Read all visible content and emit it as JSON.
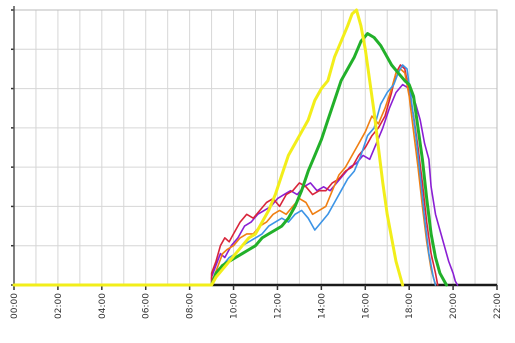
{
  "chart_data": {
    "type": "line",
    "title": "",
    "xlabel": "",
    "ylabel": "",
    "x_tick_labels": [
      "00:00",
      "02:00",
      "04:00",
      "06:00",
      "08:00",
      "10:00",
      "12:00",
      "14:00",
      "16:00",
      "18:00",
      "20:00",
      "22:00"
    ],
    "xlim": [
      0,
      22
    ],
    "ylim": [
      0,
      7
    ],
    "grid": true,
    "legend": "none",
    "series": [
      {
        "color": "#8a1fd4",
        "points": [
          [
            0,
            0
          ],
          [
            9.0,
            0
          ],
          [
            9.0,
            0.2
          ],
          [
            9.2,
            0.5
          ],
          [
            9.4,
            0.8
          ],
          [
            9.6,
            0.7
          ],
          [
            9.9,
            1.0
          ],
          [
            10.2,
            1.2
          ],
          [
            10.5,
            1.5
          ],
          [
            10.8,
            1.6
          ],
          [
            11.1,
            1.8
          ],
          [
            11.4,
            1.9
          ],
          [
            11.7,
            2.0
          ],
          [
            12.0,
            2.2
          ],
          [
            12.3,
            2.3
          ],
          [
            12.6,
            2.4
          ],
          [
            12.9,
            2.3
          ],
          [
            13.2,
            2.5
          ],
          [
            13.5,
            2.6
          ],
          [
            13.8,
            2.4
          ],
          [
            14.1,
            2.5
          ],
          [
            14.4,
            2.4
          ],
          [
            14.7,
            2.6
          ],
          [
            15.0,
            2.8
          ],
          [
            15.3,
            3.0
          ],
          [
            15.6,
            3.1
          ],
          [
            15.9,
            3.3
          ],
          [
            16.2,
            3.2
          ],
          [
            16.5,
            3.6
          ],
          [
            16.8,
            4.0
          ],
          [
            17.1,
            4.5
          ],
          [
            17.4,
            4.9
          ],
          [
            17.7,
            5.1
          ],
          [
            18.0,
            5.0
          ],
          [
            18.3,
            4.6
          ],
          [
            18.5,
            4.2
          ],
          [
            18.7,
            3.6
          ],
          [
            18.9,
            3.2
          ],
          [
            19.0,
            2.5
          ],
          [
            19.2,
            1.8
          ],
          [
            19.4,
            1.4
          ],
          [
            19.6,
            1.0
          ],
          [
            19.8,
            0.6
          ],
          [
            20.0,
            0.3
          ],
          [
            20.1,
            0.1
          ],
          [
            20.2,
            0
          ]
        ]
      },
      {
        "color": "#d8253a",
        "points": [
          [
            0,
            0
          ],
          [
            9.0,
            0
          ],
          [
            9.0,
            0.3
          ],
          [
            9.2,
            0.6
          ],
          [
            9.4,
            1.0
          ],
          [
            9.6,
            1.2
          ],
          [
            9.8,
            1.1
          ],
          [
            10.0,
            1.3
          ],
          [
            10.3,
            1.6
          ],
          [
            10.6,
            1.8
          ],
          [
            10.9,
            1.7
          ],
          [
            11.2,
            1.9
          ],
          [
            11.5,
            2.1
          ],
          [
            11.8,
            2.2
          ],
          [
            12.1,
            2.0
          ],
          [
            12.4,
            2.3
          ],
          [
            12.7,
            2.4
          ],
          [
            13.0,
            2.6
          ],
          [
            13.3,
            2.5
          ],
          [
            13.6,
            2.3
          ],
          [
            13.9,
            2.4
          ],
          [
            14.2,
            2.4
          ],
          [
            14.5,
            2.6
          ],
          [
            14.8,
            2.7
          ],
          [
            15.1,
            2.9
          ],
          [
            15.4,
            3.0
          ],
          [
            15.7,
            3.3
          ],
          [
            16.0,
            3.5
          ],
          [
            16.3,
            3.8
          ],
          [
            16.6,
            4.0
          ],
          [
            16.9,
            4.3
          ],
          [
            17.2,
            4.9
          ],
          [
            17.4,
            5.4
          ],
          [
            17.6,
            5.6
          ],
          [
            17.8,
            5.5
          ],
          [
            18.0,
            4.9
          ],
          [
            18.2,
            4.3
          ],
          [
            18.4,
            3.5
          ],
          [
            18.6,
            2.6
          ],
          [
            18.8,
            1.6
          ],
          [
            19.0,
            0.8
          ],
          [
            19.2,
            0.3
          ],
          [
            19.3,
            0
          ]
        ]
      },
      {
        "color": "#f07f12",
        "points": [
          [
            0,
            0
          ],
          [
            9.0,
            0
          ],
          [
            9.1,
            0.2
          ],
          [
            9.3,
            0.5
          ],
          [
            9.5,
            0.8
          ],
          [
            9.7,
            0.9
          ],
          [
            10.0,
            1.0
          ],
          [
            10.3,
            1.2
          ],
          [
            10.6,
            1.3
          ],
          [
            10.9,
            1.3
          ],
          [
            11.2,
            1.5
          ],
          [
            11.5,
            1.6
          ],
          [
            11.8,
            1.8
          ],
          [
            12.1,
            1.9
          ],
          [
            12.4,
            1.8
          ],
          [
            12.7,
            2.0
          ],
          [
            13.0,
            2.2
          ],
          [
            13.3,
            2.1
          ],
          [
            13.6,
            1.8
          ],
          [
            13.9,
            1.9
          ],
          [
            14.2,
            2.0
          ],
          [
            14.5,
            2.4
          ],
          [
            14.8,
            2.8
          ],
          [
            15.1,
            3.0
          ],
          [
            15.4,
            3.3
          ],
          [
            15.7,
            3.6
          ],
          [
            16.0,
            3.9
          ],
          [
            16.3,
            4.3
          ],
          [
            16.6,
            4.1
          ],
          [
            16.9,
            4.5
          ],
          [
            17.2,
            5.0
          ],
          [
            17.4,
            5.4
          ],
          [
            17.6,
            5.5
          ],
          [
            17.8,
            5.4
          ],
          [
            18.0,
            4.8
          ],
          [
            18.2,
            3.9
          ],
          [
            18.4,
            3.0
          ],
          [
            18.6,
            2.0
          ],
          [
            18.8,
            1.1
          ],
          [
            19.0,
            0.4
          ],
          [
            19.2,
            0
          ]
        ]
      },
      {
        "color": "#3c94e6",
        "points": [
          [
            0,
            0
          ],
          [
            9.0,
            0
          ],
          [
            9.2,
            0.3
          ],
          [
            9.5,
            0.5
          ],
          [
            9.8,
            0.7
          ],
          [
            10.1,
            0.8
          ],
          [
            10.4,
            1.0
          ],
          [
            10.7,
            1.1
          ],
          [
            11.0,
            1.2
          ],
          [
            11.3,
            1.3
          ],
          [
            11.6,
            1.5
          ],
          [
            11.9,
            1.6
          ],
          [
            12.2,
            1.7
          ],
          [
            12.5,
            1.6
          ],
          [
            12.8,
            1.8
          ],
          [
            13.1,
            1.9
          ],
          [
            13.4,
            1.7
          ],
          [
            13.7,
            1.4
          ],
          [
            14.0,
            1.6
          ],
          [
            14.3,
            1.8
          ],
          [
            14.6,
            2.1
          ],
          [
            14.9,
            2.4
          ],
          [
            15.2,
            2.7
          ],
          [
            15.5,
            2.9
          ],
          [
            15.8,
            3.3
          ],
          [
            16.1,
            3.8
          ],
          [
            16.4,
            4.0
          ],
          [
            16.7,
            4.6
          ],
          [
            17.0,
            4.9
          ],
          [
            17.3,
            5.1
          ],
          [
            17.5,
            5.4
          ],
          [
            17.7,
            5.6
          ],
          [
            17.9,
            5.5
          ],
          [
            18.1,
            4.7
          ],
          [
            18.3,
            3.8
          ],
          [
            18.5,
            2.8
          ],
          [
            18.7,
            1.7
          ],
          [
            18.9,
            0.8
          ],
          [
            19.1,
            0.2
          ],
          [
            19.2,
            0
          ]
        ]
      },
      {
        "color": "#22b02a",
        "points": [
          [
            0,
            0
          ],
          [
            9.0,
            0
          ],
          [
            9.2,
            0.3
          ],
          [
            9.5,
            0.5
          ],
          [
            9.8,
            0.6
          ],
          [
            10.1,
            0.7
          ],
          [
            10.4,
            0.8
          ],
          [
            10.7,
            0.9
          ],
          [
            11.0,
            1.0
          ],
          [
            11.3,
            1.2
          ],
          [
            11.6,
            1.3
          ],
          [
            11.9,
            1.4
          ],
          [
            12.2,
            1.5
          ],
          [
            12.5,
            1.7
          ],
          [
            12.8,
            2.0
          ],
          [
            13.1,
            2.4
          ],
          [
            13.4,
            2.9
          ],
          [
            13.7,
            3.3
          ],
          [
            14.0,
            3.7
          ],
          [
            14.3,
            4.2
          ],
          [
            14.6,
            4.7
          ],
          [
            14.9,
            5.2
          ],
          [
            15.2,
            5.5
          ],
          [
            15.5,
            5.8
          ],
          [
            15.8,
            6.2
          ],
          [
            16.1,
            6.4
          ],
          [
            16.4,
            6.3
          ],
          [
            16.7,
            6.1
          ],
          [
            16.9,
            5.9
          ],
          [
            17.2,
            5.6
          ],
          [
            17.5,
            5.4
          ],
          [
            17.8,
            5.2
          ],
          [
            18.0,
            5.1
          ],
          [
            18.2,
            4.8
          ],
          [
            18.4,
            4.0
          ],
          [
            18.6,
            3.2
          ],
          [
            18.8,
            2.2
          ],
          [
            19.0,
            1.3
          ],
          [
            19.2,
            0.7
          ],
          [
            19.4,
            0.3
          ],
          [
            19.6,
            0.1
          ],
          [
            19.7,
            0
          ]
        ]
      },
      {
        "color": "#f2ee1a",
        "points": [
          [
            0,
            0
          ],
          [
            9.0,
            0
          ],
          [
            9.2,
            0.2
          ],
          [
            9.5,
            0.4
          ],
          [
            9.8,
            0.6
          ],
          [
            10.1,
            0.8
          ],
          [
            10.4,
            1.0
          ],
          [
            10.7,
            1.2
          ],
          [
            11.0,
            1.3
          ],
          [
            11.3,
            1.6
          ],
          [
            11.6,
            1.9
          ],
          [
            11.9,
            2.3
          ],
          [
            12.2,
            2.8
          ],
          [
            12.5,
            3.3
          ],
          [
            12.8,
            3.6
          ],
          [
            13.1,
            3.9
          ],
          [
            13.4,
            4.2
          ],
          [
            13.7,
            4.7
          ],
          [
            14.0,
            5.0
          ],
          [
            14.3,
            5.2
          ],
          [
            14.6,
            5.8
          ],
          [
            14.9,
            6.2
          ],
          [
            15.2,
            6.6
          ],
          [
            15.4,
            6.9
          ],
          [
            15.6,
            7.0
          ],
          [
            15.8,
            6.6
          ],
          [
            16.0,
            6.0
          ],
          [
            16.2,
            5.2
          ],
          [
            16.4,
            4.4
          ],
          [
            16.6,
            3.5
          ],
          [
            16.8,
            2.6
          ],
          [
            17.0,
            1.8
          ],
          [
            17.2,
            1.2
          ],
          [
            17.4,
            0.6
          ],
          [
            17.6,
            0.2
          ],
          [
            17.7,
            0
          ]
        ]
      }
    ]
  }
}
